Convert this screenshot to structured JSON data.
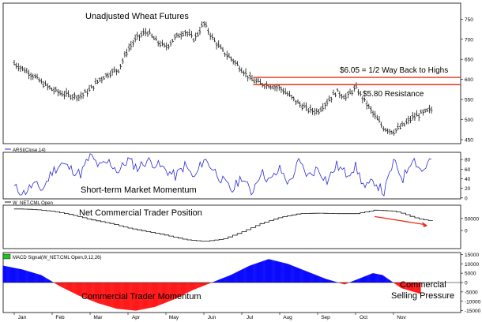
{
  "chart_data": [
    {
      "type": "ohlc",
      "title": "Unadjusted Wheat Futures",
      "y_ticks": [
        450,
        500,
        550,
        600,
        650,
        700,
        750
      ],
      "ylim": [
        440,
        790
      ],
      "annotations": [
        {
          "text": "$6.05 = 1/2 Way Back to Highs",
          "level": 605,
          "color": "#e8301c"
        },
        {
          "text": "$5.80 Resistance",
          "level": 587,
          "color": "#e8301c"
        }
      ],
      "series": [
        {
          "x": [
            0,
            0.25,
            0.5,
            0.75,
            1,
            1.25,
            1.5,
            1.75,
            2,
            2.25,
            2.5,
            2.75,
            3,
            3.25,
            3.5,
            3.75,
            4,
            4.25,
            4.5,
            4.75,
            5,
            5.25,
            5.5,
            5.75,
            6,
            6.25,
            6.5,
            6.75,
            7,
            7.25,
            7.5,
            7.75,
            8,
            8.25,
            8.5,
            8.75,
            9,
            9.25,
            9.5,
            9.75,
            10,
            10.25,
            10.5,
            10.75,
            11
          ],
          "close": [
            640,
            625,
            610,
            590,
            575,
            565,
            560,
            558,
            575,
            600,
            615,
            625,
            675,
            705,
            720,
            695,
            680,
            705,
            720,
            700,
            740,
            700,
            670,
            650,
            625,
            600,
            590,
            585,
            580,
            560,
            540,
            525,
            520,
            545,
            570,
            555,
            580,
            545,
            510,
            478,
            470,
            485,
            505,
            515,
            525
          ]
        }
      ]
    },
    {
      "type": "line",
      "legend": "ARSI(Close,14)",
      "annotation": "Short-term Market Momentum",
      "y_ticks": [
        0,
        20,
        40,
        60,
        80
      ],
      "ylim": [
        -2,
        95
      ],
      "series": [
        {
          "x": [
            0,
            0.25,
            0.5,
            0.75,
            1,
            1.25,
            1.5,
            1.75,
            2,
            2.25,
            2.5,
            2.75,
            3,
            3.25,
            3.5,
            3.75,
            4,
            4.25,
            4.5,
            4.75,
            5,
            5.25,
            5.5,
            5.75,
            6,
            6.25,
            6.5,
            6.75,
            7,
            7.25,
            7.5,
            7.75,
            8,
            8.25,
            8.5,
            8.75,
            9,
            9.25,
            9.5,
            9.75,
            10,
            10.25,
            10.5,
            10.75,
            11
          ],
          "values": [
            22,
            10,
            28,
            18,
            55,
            72,
            60,
            50,
            88,
            65,
            75,
            55,
            80,
            62,
            78,
            70,
            58,
            45,
            68,
            40,
            82,
            60,
            35,
            15,
            45,
            10,
            55,
            35,
            60,
            30,
            75,
            45,
            62,
            35,
            68,
            50,
            65,
            20,
            35,
            10,
            75,
            40,
            85,
            55,
            82
          ]
        }
      ]
    },
    {
      "type": "line",
      "legend": "W_NET.CML Open",
      "annotation": "Net Commercial Trader Position",
      "y_ticks": [
        0,
        50000
      ],
      "ylim": [
        -75000,
        105000
      ],
      "arrow": {
        "color": "#e8301c"
      },
      "series": [
        {
          "x": [
            0,
            0.5,
            1,
            1.5,
            2,
            2.5,
            3,
            3.5,
            4,
            4.5,
            5,
            5.5,
            6,
            6.5,
            7,
            7.5,
            8,
            8.5,
            9,
            9.5,
            10,
            10.25,
            10.5,
            10.75,
            11
          ],
          "values": [
            90000,
            87000,
            80000,
            65000,
            45000,
            30000,
            10000,
            -5000,
            -20000,
            -38000,
            -45000,
            -35000,
            -5000,
            30000,
            55000,
            70000,
            72000,
            70000,
            70000,
            85000,
            80000,
            70000,
            55000,
            45000,
            40000
          ]
        }
      ]
    },
    {
      "type": "area",
      "legend": "MACD Signal(W_NET.CML Open,9,12,26)",
      "annotations": [
        "Commercial Trader Momentum",
        "Commercial",
        "Selling Pressure"
      ],
      "y_ticks": [
        15000,
        10000,
        5000,
        0,
        -5000,
        -10000,
        -15000
      ],
      "ylim": [
        -16000,
        16000
      ],
      "positive_color": "#0a0aff",
      "negative_color": "#ff1a1a",
      "series": [
        {
          "x": [
            0,
            0.5,
            1,
            1.25,
            1.5,
            2,
            2.5,
            3,
            3.5,
            4,
            4.5,
            5,
            5.5,
            6,
            6.5,
            7,
            7.5,
            8,
            8.5,
            9,
            9.5,
            9.75,
            10,
            10.5,
            11
          ],
          "values": [
            9000,
            7000,
            4000,
            1000,
            -2000,
            -7000,
            -11000,
            -14000,
            -15000,
            -13000,
            -9000,
            -4000,
            0,
            4000,
            9000,
            12500,
            10000,
            6000,
            2000,
            -1000,
            3000,
            5000,
            4000,
            -3000,
            -6000
          ]
        }
      ]
    }
  ],
  "x_labels": [
    "Jan",
    "Feb",
    "Mar",
    "Apr",
    "May",
    "Jun",
    "Jul",
    "Aug",
    "Sep",
    "Oct",
    "Nov"
  ]
}
